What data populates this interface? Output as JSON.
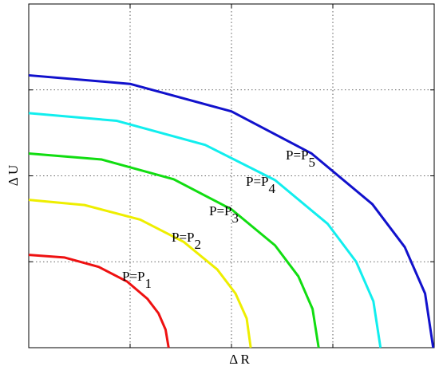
{
  "chart_data": {
    "type": "line",
    "x_label": "Δ R",
    "y_label": "Δ U",
    "xlim": [
      0,
      4
    ],
    "ylim": [
      0,
      4
    ],
    "xticks": [
      1,
      2,
      3
    ],
    "yticks": [
      1,
      2,
      3
    ],
    "grid": true,
    "series": [
      {
        "name": "P=P1",
        "color": "#ee1111",
        "x": [
          0,
          0.35,
          0.69,
          0.97,
          1.17,
          1.28,
          1.35,
          1.38
        ],
        "values": [
          1.08,
          1.05,
          0.94,
          0.77,
          0.57,
          0.4,
          0.21,
          0
        ]
      },
      {
        "name": "P=P2",
        "color": "#eeee00",
        "x": [
          0,
          0.55,
          1.1,
          1.53,
          1.86,
          2.04,
          2.15,
          2.19
        ],
        "values": [
          1.72,
          1.66,
          1.49,
          1.23,
          0.91,
          0.63,
          0.34,
          0
        ]
      },
      {
        "name": "P=P3",
        "color": "#11dd11",
        "x": [
          0,
          0.72,
          1.43,
          2.0,
          2.43,
          2.66,
          2.8,
          2.86
        ],
        "values": [
          2.26,
          2.19,
          1.96,
          1.61,
          1.19,
          0.83,
          0.45,
          0
        ]
      },
      {
        "name": "P=P4",
        "color": "#11eeee",
        "x": [
          0,
          0.87,
          1.74,
          2.43,
          2.95,
          3.23,
          3.4,
          3.47
        ],
        "values": [
          2.73,
          2.64,
          2.36,
          1.95,
          1.44,
          1.0,
          0.54,
          0
        ]
      },
      {
        "name": "P=P5",
        "color": "#1111cc",
        "x": [
          0,
          1.0,
          2.0,
          2.79,
          3.39,
          3.71,
          3.91,
          3.99
        ],
        "values": [
          3.17,
          3.07,
          2.75,
          2.26,
          1.67,
          1.17,
          0.63,
          0
        ]
      }
    ],
    "annotations": [
      {
        "text": "P=P",
        "subscript": "1"
      },
      {
        "text": "P=P",
        "subscript": "2"
      },
      {
        "text": "P=P",
        "subscript": "3"
      },
      {
        "text": "P=P",
        "subscript": "4"
      },
      {
        "text": "P=P",
        "subscript": "5"
      }
    ]
  }
}
